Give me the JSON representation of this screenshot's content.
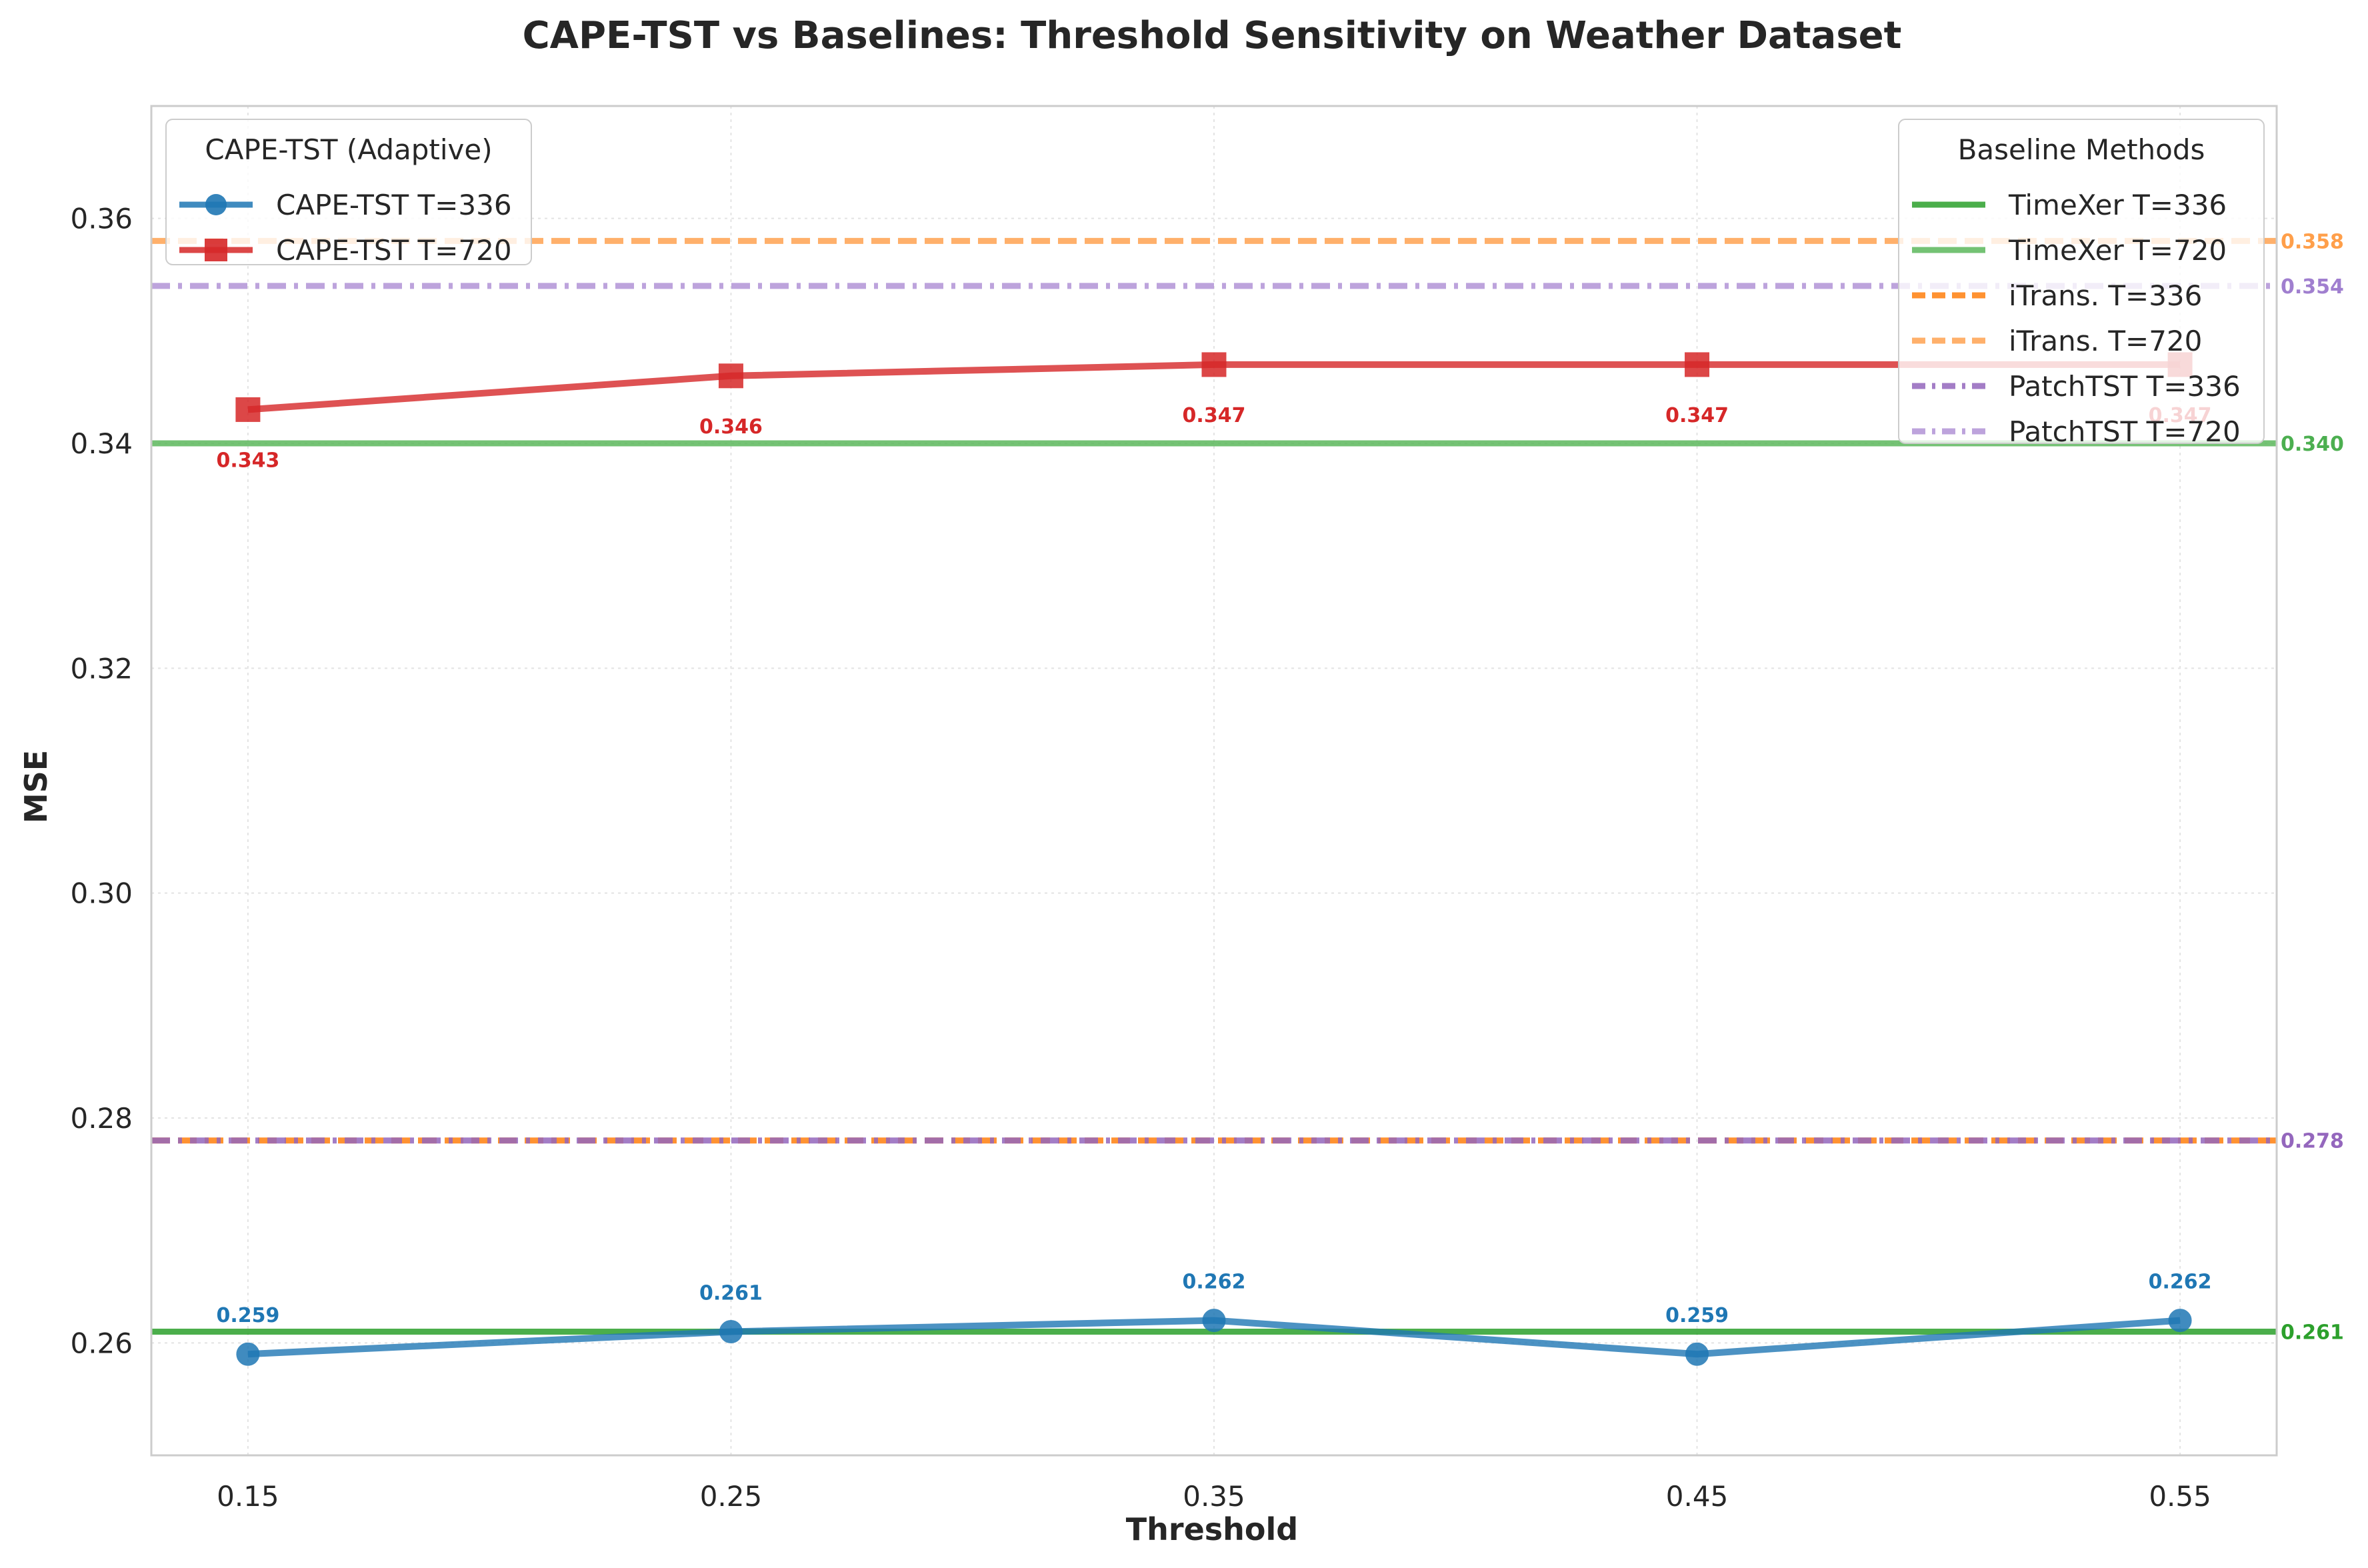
{
  "chart_data": {
    "type": "line",
    "title": "CAPE-TST vs Baselines: Threshold Sensitivity on Weather Dataset",
    "xlabel": "Threshold",
    "ylabel": "MSE",
    "x": [
      0.15,
      0.25,
      0.35,
      0.45,
      0.55
    ],
    "x_tick_labels": [
      "0.15",
      "0.25",
      "0.35",
      "0.45",
      "0.55"
    ],
    "xlim": [
      0.13,
      0.57
    ],
    "ylim": [
      0.25,
      0.37
    ],
    "y_ticks": [
      0.26,
      0.28,
      0.3,
      0.32,
      0.34,
      0.36
    ],
    "y_tick_labels": [
      "0.26",
      "0.28",
      "0.30",
      "0.32",
      "0.34",
      "0.36"
    ],
    "grid": true,
    "series": [
      {
        "name": "CAPE-TST T=336",
        "values": [
          0.259,
          0.261,
          0.262,
          0.259,
          0.262
        ],
        "labels": [
          "0.259",
          "0.261",
          "0.262",
          "0.259",
          "0.262"
        ],
        "color": "#1f77b4",
        "marker": "circle",
        "label_position": "above"
      },
      {
        "name": "CAPE-TST T=720",
        "values": [
          0.343,
          0.346,
          0.347,
          0.347,
          0.347
        ],
        "labels": [
          "0.343",
          "0.346",
          "0.347",
          "0.347",
          "0.347"
        ],
        "color": "#d62728",
        "marker": "square",
        "label_position": "below"
      }
    ],
    "baselines": [
      {
        "name": "TimeXer T=336",
        "value": 0.261,
        "color": "#2ca02c",
        "style": "solid"
      },
      {
        "name": "TimeXer T=720",
        "value": 0.34,
        "color": "#5cb85c",
        "style": "solid"
      },
      {
        "name": "iTrans. T=336",
        "value": 0.278,
        "color": "#ff7f0e",
        "style": "dashed"
      },
      {
        "name": "iTrans. T=720",
        "value": 0.358,
        "color": "#ffa352",
        "style": "dashed"
      },
      {
        "name": "PatchTST T=336",
        "value": 0.278,
        "color": "#9467bd",
        "style": "dashdot"
      },
      {
        "name": "PatchTST T=720",
        "value": 0.354,
        "color": "#b294d6",
        "style": "dashdot"
      }
    ],
    "end_labels": [
      {
        "text": "0.358",
        "value": 0.358,
        "color": "#ff9f4a"
      },
      {
        "text": "0.354",
        "value": 0.354,
        "color": "#a07fcf"
      },
      {
        "text": "0.340",
        "value": 0.34,
        "color": "#4caf50"
      },
      {
        "text": "0.278",
        "value": 0.278,
        "color": "#9467bd"
      },
      {
        "text": "0.261",
        "value": 0.261,
        "color": "#2ca02c"
      }
    ],
    "legends": [
      {
        "title": "CAPE-TST (Adaptive)",
        "placement": "upper-left"
      },
      {
        "title": "Baseline Methods",
        "placement": "upper-right"
      }
    ]
  }
}
